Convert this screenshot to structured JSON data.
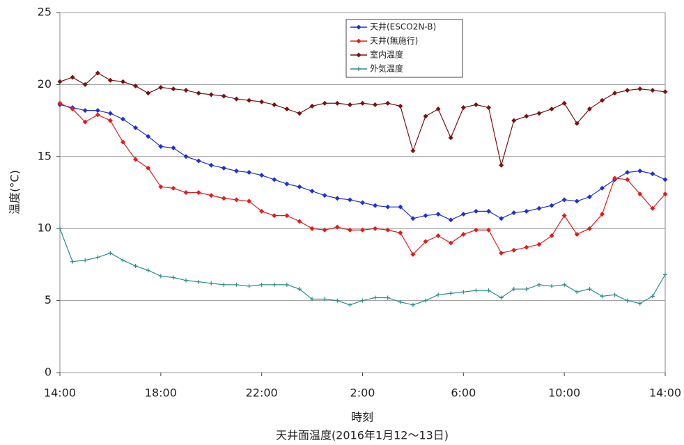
{
  "chart_data": {
    "type": "line",
    "title": "天井面温度(2016年1月12～13日)",
    "xlabel": "時刻",
    "ylabel": "温度(°C)",
    "x": [
      0,
      0.5,
      1,
      1.5,
      2,
      2.5,
      3,
      3.5,
      4,
      4.5,
      5,
      5.5,
      6,
      6.5,
      7,
      7.5,
      8,
      8.5,
      9,
      9.5,
      10,
      10.5,
      11,
      11.5,
      12,
      12.5,
      13,
      13.5,
      14,
      14.5,
      15,
      15.5,
      16,
      16.5,
      17,
      17.5,
      18,
      18.5,
      19,
      19.5,
      20,
      20.5,
      21,
      21.5,
      22,
      22.5,
      23,
      23.5,
      24
    ],
    "xlim": [
      0,
      24
    ],
    "xticks": [
      {
        "value": 0,
        "label": "14:00"
      },
      {
        "value": 4,
        "label": "18:00"
      },
      {
        "value": 8,
        "label": "22:00"
      },
      {
        "value": 12,
        "label": "2:00"
      },
      {
        "value": 16,
        "label": "6:00"
      },
      {
        "value": 20,
        "label": "10:00"
      },
      {
        "value": 24,
        "label": "14:00"
      }
    ],
    "ylim": [
      0,
      25
    ],
    "yticks": [
      0,
      5,
      10,
      15,
      20,
      25
    ],
    "grid": true,
    "legend": "top-center",
    "series": [
      {
        "name": "天井(ESCO2N-B)",
        "color": "#1f2fd6",
        "marker": "diamond",
        "values": [
          18.6,
          18.4,
          18.2,
          18.2,
          18.0,
          17.6,
          17.0,
          16.4,
          15.7,
          15.6,
          15.0,
          14.7,
          14.4,
          14.2,
          14.0,
          13.9,
          13.7,
          13.4,
          13.1,
          12.9,
          12.6,
          12.3,
          12.1,
          12.0,
          11.8,
          11.6,
          11.5,
          11.5,
          10.7,
          10.9,
          11.0,
          10.6,
          11.0,
          11.2,
          11.2,
          10.7,
          11.1,
          11.2,
          11.4,
          11.6,
          12.0,
          11.9,
          12.2,
          12.8,
          13.4,
          13.9,
          14.0,
          13.8,
          13.4
        ]
      },
      {
        "name": "天井(無施行)",
        "color": "#e41b1b",
        "marker": "diamond",
        "values": [
          18.7,
          18.3,
          17.4,
          17.9,
          17.5,
          16.0,
          14.8,
          14.2,
          12.9,
          12.8,
          12.5,
          12.5,
          12.3,
          12.1,
          12.0,
          11.9,
          11.2,
          10.9,
          10.9,
          10.5,
          10.0,
          9.9,
          10.1,
          9.9,
          9.9,
          10.0,
          9.9,
          9.7,
          8.2,
          9.1,
          9.5,
          9.0,
          9.6,
          9.9,
          9.9,
          8.3,
          8.5,
          8.7,
          8.9,
          9.5,
          10.9,
          9.6,
          10.0,
          11.0,
          13.5,
          13.4,
          12.4,
          11.4,
          12.4
        ]
      },
      {
        "name": "室内温度",
        "color": "#7a1010",
        "marker": "diamond",
        "values": [
          20.2,
          20.5,
          20.0,
          20.8,
          20.3,
          20.2,
          19.9,
          19.4,
          19.8,
          19.7,
          19.6,
          19.4,
          19.3,
          19.2,
          19.0,
          18.9,
          18.8,
          18.6,
          18.3,
          18.0,
          18.5,
          18.7,
          18.7,
          18.6,
          18.7,
          18.6,
          18.7,
          18.5,
          15.4,
          17.8,
          18.3,
          16.3,
          18.4,
          18.6,
          18.4,
          14.4,
          17.5,
          17.8,
          18.0,
          18.3,
          18.7,
          17.3,
          18.3,
          18.9,
          19.4,
          19.6,
          19.7,
          19.6,
          19.5
        ]
      },
      {
        "name": "外気温度",
        "color": "#2e8b8b",
        "marker": "plus",
        "values": [
          10.0,
          7.7,
          7.8,
          8.0,
          8.3,
          7.8,
          7.4,
          7.1,
          6.7,
          6.6,
          6.4,
          6.3,
          6.2,
          6.1,
          6.1,
          6.0,
          6.1,
          6.1,
          6.1,
          5.8,
          5.1,
          5.1,
          5.0,
          4.7,
          5.0,
          5.2,
          5.2,
          4.9,
          4.7,
          5.0,
          5.4,
          5.5,
          5.6,
          5.7,
          5.7,
          5.2,
          5.8,
          5.8,
          6.1,
          6.0,
          6.1,
          5.6,
          5.8,
          5.3,
          5.4,
          5.0,
          4.8,
          5.3,
          6.8
        ]
      }
    ]
  }
}
